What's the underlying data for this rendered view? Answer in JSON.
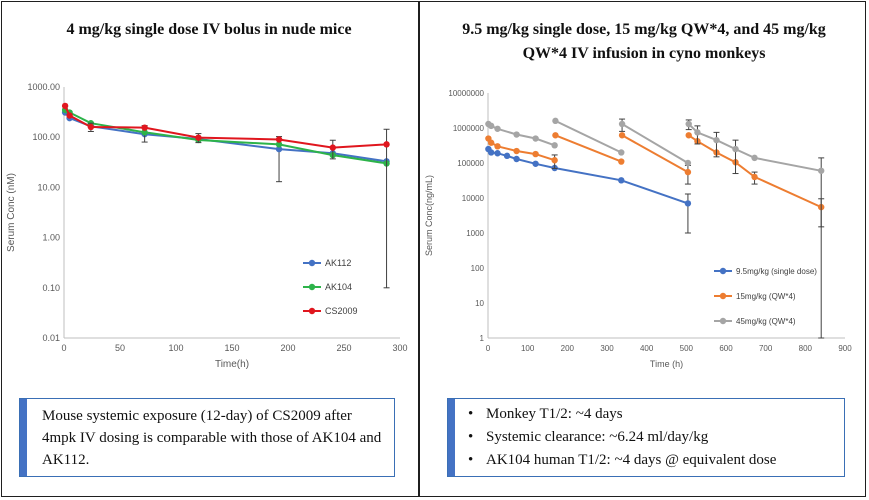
{
  "left_panel": {
    "title": "4 mg/kg single dose IV bolus in nude mice",
    "callout": "Mouse systemic exposure (12-day) of CS2009 after 4mpk IV dosing is comparable with those of AK104 and AK112."
  },
  "right_panel": {
    "title_line1": "9.5 mg/kg single dose, 15 mg/kg QW*4, and 45 mg/kg",
    "title_line2": "QW*4 IV infusion in cyno monkeys",
    "bullets": [
      "Monkey T1/2: ~4 days",
      "Systemic clearance: ~6.24 ml/day/kg",
      "AK104 human T1/2: ~4 days @ equivalent dose"
    ]
  },
  "chart_data": [
    {
      "type": "line",
      "xlabel": "Time(h)",
      "ylabel": "Serum Conc (nM)",
      "y_scale": "log",
      "xlim": [
        0,
        300
      ],
      "ylim": [
        0.01,
        1000
      ],
      "x_ticks": [
        0,
        50,
        100,
        150,
        200,
        250,
        300
      ],
      "y_ticks": [
        "0.01",
        "0.10",
        "1.00",
        "10.00",
        "100.00",
        "1000.00"
      ],
      "grid": false,
      "legend_position": "bottom-right",
      "colors": {
        "AK112": "#4472c4",
        "AK104": "#2db34a",
        "CS2009": "#e0161e"
      },
      "series": [
        {
          "name": "AK112",
          "x": [
            1,
            5,
            24,
            72,
            120,
            192,
            240,
            288
          ],
          "y": [
            310,
            240,
            165,
            115,
            92,
            58,
            48,
            33
          ],
          "err": [
            0,
            0,
            0,
            0,
            0,
            45,
            0,
            0
          ]
        },
        {
          "name": "AK104",
          "x": [
            1,
            5,
            24,
            72,
            120,
            192,
            240,
            288
          ],
          "y": [
            350,
            310,
            190,
            125,
            88,
            72,
            44,
            30
          ],
          "err": [
            0,
            0,
            0,
            45,
            0,
            0,
            0,
            0
          ]
        },
        {
          "name": "CS2009",
          "x": [
            1,
            5,
            24,
            72,
            120,
            192,
            240,
            288
          ],
          "y": [
            420,
            270,
            160,
            155,
            98,
            90,
            62,
            72
          ],
          "err": [
            0,
            0,
            30,
            0,
            20,
            0,
            25,
            71.9
          ]
        }
      ]
    },
    {
      "type": "line",
      "xlabel": "Time (h)",
      "ylabel": "Serum Conc(ng/mL)",
      "y_scale": "log",
      "xlim": [
        0,
        900
      ],
      "ylim": [
        1,
        10000000
      ],
      "x_ticks": [
        0,
        100,
        200,
        300,
        400,
        500,
        600,
        700,
        800,
        900
      ],
      "y_ticks": [
        "1",
        "10",
        "100",
        "1000",
        "10000",
        "100000",
        "1000000",
        "10000000"
      ],
      "grid": false,
      "legend_position": "bottom-right",
      "colors": {
        "9.5mg/kg (single dose)": "#4472c4",
        "15mg/kg (QW*4)": "#ed7d31",
        "45mg/kg (QW*4)": "#a5a5a5"
      },
      "series": [
        {
          "name": "9.5mg/kg (single dose)",
          "segments": [
            {
              "x": [
                1,
                8,
                24,
                48,
                72,
                120,
                168,
                336,
                504
              ],
              "y": [
                250000,
                200000,
                190000,
                160000,
                130000,
                95000,
                72000,
                32000,
                7000
              ],
              "err": [
                0,
                0,
                0,
                0,
                0,
                0,
                0,
                0,
                6000
              ]
            }
          ]
        },
        {
          "name": "15mg/kg (QW*4)",
          "segments": [
            {
              "x": [
                1,
                8,
                24,
                72,
                120,
                168
              ],
              "y": [
                500000,
                380000,
                300000,
                220000,
                180000,
                120000
              ],
              "err": [
                0,
                0,
                0,
                0,
                0,
                50000
              ]
            },
            {
              "x": [
                170,
                336
              ],
              "y": [
                620000,
                110000
              ],
              "err": [
                0,
                0
              ]
            },
            {
              "x": [
                338,
                504
              ],
              "y": [
                620000,
                55000
              ],
              "err": [
                0,
                30000
              ]
            },
            {
              "x": [
                506,
                528,
                576,
                624,
                672,
                840
              ],
              "y": [
                620000,
                420000,
                200000,
                105000,
                40000,
                5500
              ],
              "err": [
                0,
                0,
                0,
                0,
                15000,
                4000
              ]
            }
          ]
        },
        {
          "name": "45mg/kg (QW*4)",
          "segments": [
            {
              "x": [
                1,
                8,
                24,
                72,
                120,
                168
              ],
              "y": [
                1300000,
                1150000,
                950000,
                650000,
                500000,
                320000
              ],
              "err": [
                0,
                0,
                0,
                0,
                0,
                0
              ]
            },
            {
              "x": [
                170,
                336
              ],
              "y": [
                1600000,
                200000
              ],
              "err": [
                0,
                0
              ]
            },
            {
              "x": [
                338,
                504
              ],
              "y": [
                1300000,
                100000
              ],
              "err": [
                500000,
                0
              ]
            },
            {
              "x": [
                506,
                528,
                576,
                624,
                672,
                840
              ],
              "y": [
                1300000,
                750000,
                450000,
                250000,
                140000,
                60000
              ],
              "err": [
                400000,
                400000,
                300000,
                200000,
                0,
                80000
              ]
            }
          ]
        }
      ]
    }
  ]
}
